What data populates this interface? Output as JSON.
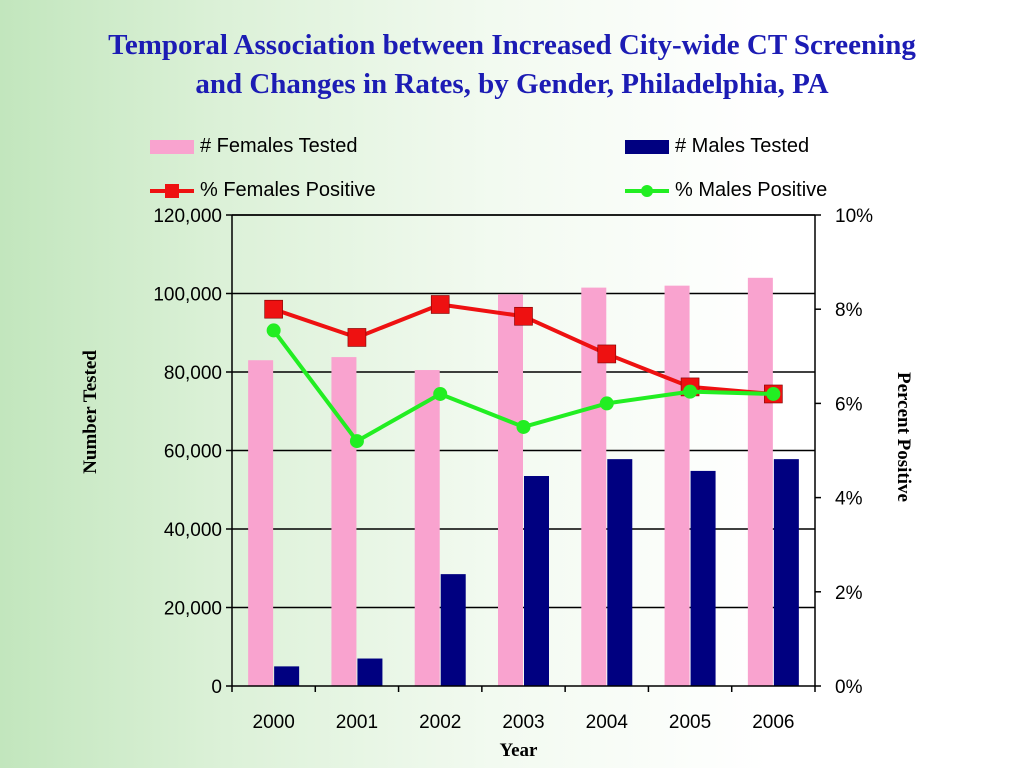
{
  "title": {
    "line1": "Temporal Association between Increased City-wide CT Screening",
    "line2": "and Changes in Rates, by Gender, Philadelphia, PA"
  },
  "colors": {
    "title": "#1c1cb4",
    "females_tested": "#f9a3cf",
    "males_tested": "#000080",
    "females_positive": "#ee1111",
    "males_positive": "#22ee22"
  },
  "chart_data": {
    "type": "bar",
    "title": "Temporal Association between Increased City-wide CT Screening and Changes in Rates, by Gender, Philadelphia, PA",
    "categories": [
      "2000",
      "2001",
      "2002",
      "2003",
      "2004",
      "2005",
      "2006"
    ],
    "xlabel": "Year",
    "ylabel": "Number Tested",
    "y2label": "Percent Positive",
    "ylim": [
      0,
      120000
    ],
    "y2lim": [
      0,
      10
    ],
    "yticks": [
      "0",
      "20,000",
      "40,000",
      "60,000",
      "80,000",
      "100,000",
      "120,000"
    ],
    "y2ticks": [
      "0%",
      "2%",
      "4%",
      "6%",
      "8%",
      "10%"
    ],
    "legend_position": "top",
    "series": [
      {
        "name": "# Females Tested",
        "type": "bar",
        "axis": "left",
        "values": [
          83000,
          83800,
          80500,
          99800,
          101500,
          102000,
          104000
        ]
      },
      {
        "name": "# Males Tested",
        "type": "bar",
        "axis": "left",
        "values": [
          5000,
          7000,
          28500,
          53500,
          57800,
          54800,
          57800
        ]
      },
      {
        "name": "% Females Positive",
        "type": "line",
        "axis": "right",
        "marker": "square",
        "values": [
          8.0,
          7.4,
          8.1,
          7.85,
          7.05,
          6.35,
          6.2
        ]
      },
      {
        "name": "% Males Positive",
        "type": "line",
        "axis": "right",
        "marker": "circle",
        "values": [
          7.55,
          5.2,
          6.2,
          5.5,
          6.0,
          6.25,
          6.2
        ]
      }
    ]
  }
}
